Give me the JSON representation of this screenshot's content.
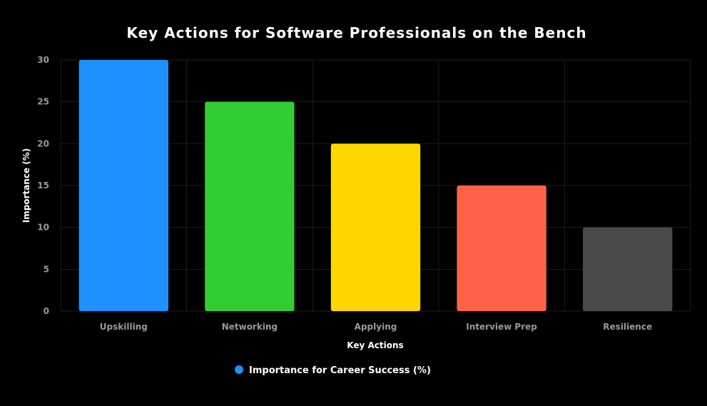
{
  "chart_data": {
    "type": "bar",
    "title": "Key Actions for Software Professionals on the Bench",
    "xlabel": "Key Actions",
    "ylabel": "Importance (%)",
    "categories": [
      "Upskilling",
      "Networking",
      "Applying",
      "Interview Prep",
      "Resilience"
    ],
    "series": [
      {
        "name": "Importance for Career Success (%)",
        "values": [
          30,
          25,
          20,
          15,
          10
        ],
        "colors": [
          "#1e90ff",
          "#32cd32",
          "#ffd700",
          "#ff6347",
          "#4a4a4a"
        ]
      }
    ],
    "ylim": [
      0,
      30
    ],
    "yticks": [
      0,
      5,
      10,
      15,
      20,
      25,
      30
    ],
    "grid": true,
    "legend_position": "bottom",
    "legend_color": "#1e90ff",
    "background": "#000000"
  }
}
